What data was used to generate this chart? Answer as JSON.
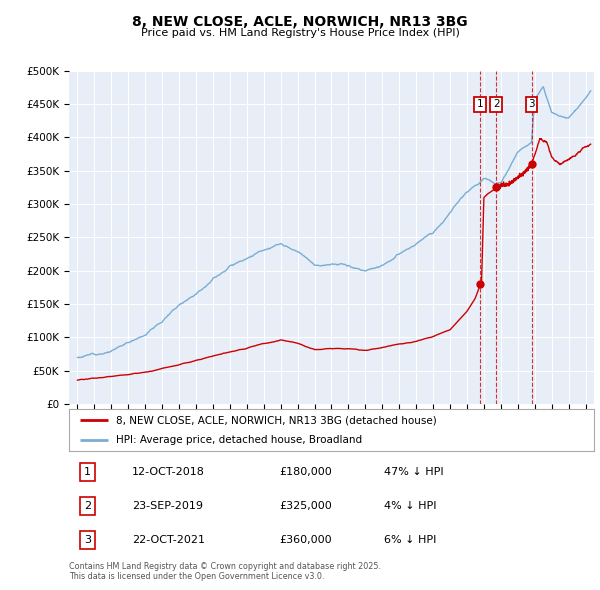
{
  "title": "8, NEW CLOSE, ACLE, NORWICH, NR13 3BG",
  "subtitle": "Price paid vs. HM Land Registry's House Price Index (HPI)",
  "legend_line1": "8, NEW CLOSE, ACLE, NORWICH, NR13 3BG (detached house)",
  "legend_line2": "HPI: Average price, detached house, Broadland",
  "footer": "Contains HM Land Registry data © Crown copyright and database right 2025.\nThis data is licensed under the Open Government Licence v3.0.",
  "sales": [
    {
      "num": 1,
      "date": "12-OCT-2018",
      "price": 180000,
      "pct": "47% ↓ HPI",
      "x": 2018.79
    },
    {
      "num": 2,
      "date": "23-SEP-2019",
      "price": 325000,
      "pct": "4% ↓ HPI",
      "x": 2019.73
    },
    {
      "num": 3,
      "date": "22-OCT-2021",
      "price": 360000,
      "pct": "6% ↓ HPI",
      "x": 2021.81
    }
  ],
  "red_line_color": "#cc0000",
  "blue_line_color": "#7aadd4",
  "dashed_line_color": "#cc0000",
  "marker_box_color": "#cc0000",
  "ylim": [
    0,
    500000
  ],
  "xlim_start": 1994.5,
  "xlim_end": 2025.5,
  "yticks": [
    0,
    50000,
    100000,
    150000,
    200000,
    250000,
    300000,
    350000,
    400000,
    450000,
    500000
  ],
  "background_color": "#ffffff",
  "plot_bg_color": "#e8eef8"
}
